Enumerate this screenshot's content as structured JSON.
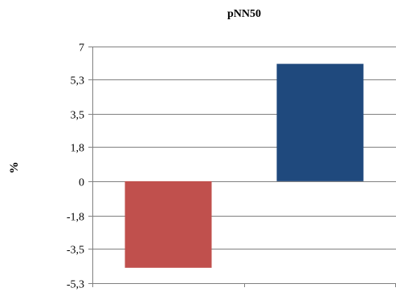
{
  "chart_data": {
    "type": "bar",
    "title": "pNN50",
    "ylabel": "%",
    "xlabel": "",
    "categories": [
      "",
      ""
    ],
    "values": [
      -4.5,
      6.1
    ],
    "colors": [
      "#C0504D",
      "#1F497D"
    ],
    "ylim": [
      -5.3,
      7
    ],
    "yticks": [
      "7",
      "5,3",
      "3,5",
      "1,8",
      "0",
      "-1,8",
      "-3,5",
      "-5,3"
    ],
    "ytick_values": [
      7,
      5.3,
      3.5,
      1.8,
      0,
      -1.8,
      -3.5,
      -5.3
    ],
    "grid": true
  }
}
